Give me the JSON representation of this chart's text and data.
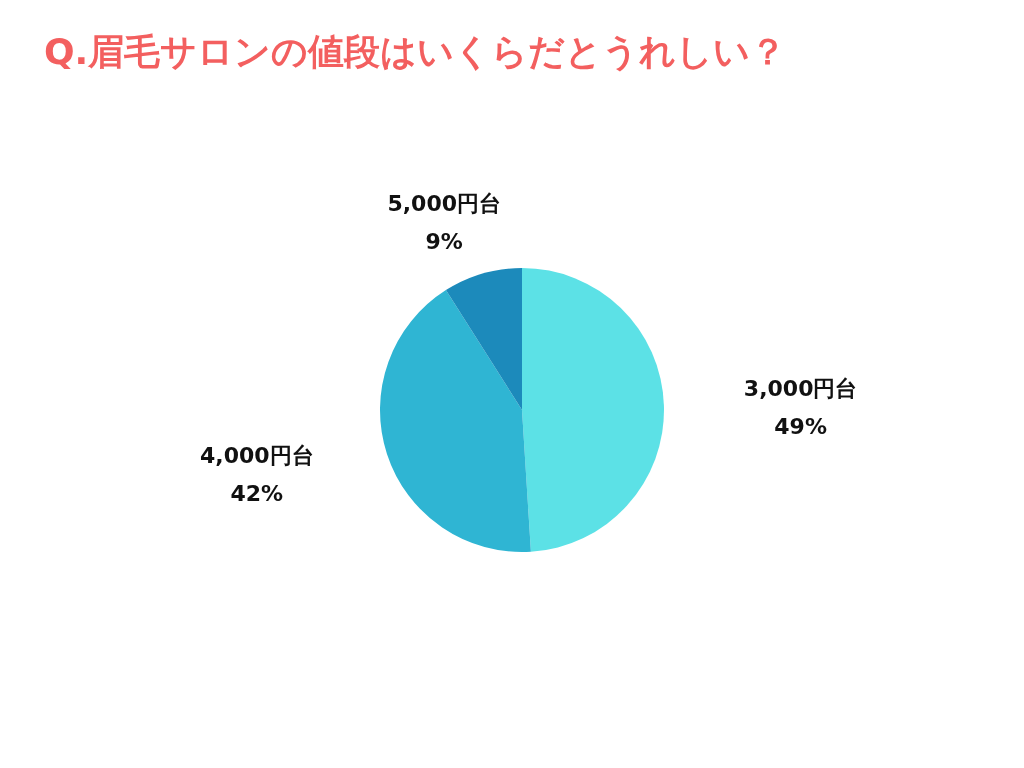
{
  "chart_data": {
    "type": "pie",
    "title": "Q.眉毛サロンの値段はいくらだとうれしい？",
    "categories": [
      "3,000円台",
      "4,000円台",
      "5,000円台"
    ],
    "values": [
      49,
      42,
      9
    ],
    "colors": [
      "#5ce1e6",
      "#2fb5d3",
      "#1c8abb"
    ],
    "value_labels": [
      "49%",
      "42%",
      "9%"
    ]
  }
}
